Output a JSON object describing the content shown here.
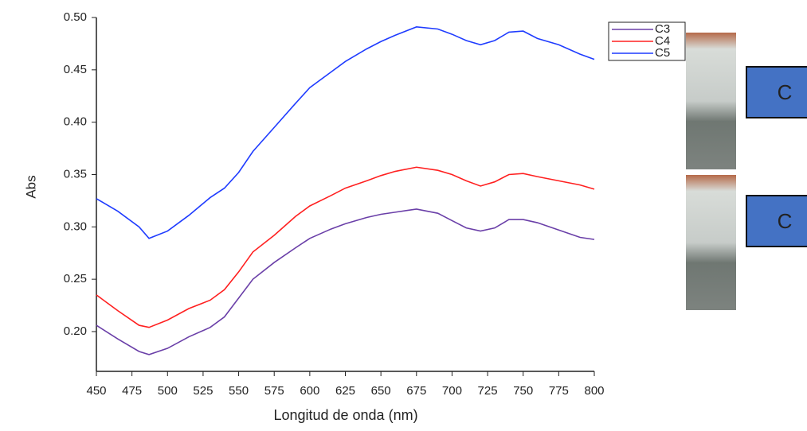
{
  "chart_data": {
    "type": "line",
    "x_label": "Longitud de onda (nm)",
    "y_label": "Abs",
    "x": [
      450,
      465,
      480,
      487,
      500,
      515,
      530,
      540,
      550,
      560,
      575,
      590,
      600,
      615,
      625,
      640,
      650,
      660,
      675,
      690,
      700,
      710,
      720,
      730,
      740,
      750,
      760,
      775,
      790,
      800
    ],
    "series": [
      {
        "name": "C3",
        "color": "#6a3fa8",
        "values": [
          0.206,
          0.193,
          0.181,
          0.178,
          0.184,
          0.195,
          0.204,
          0.214,
          0.232,
          0.25,
          0.266,
          0.28,
          0.289,
          0.298,
          0.303,
          0.309,
          0.312,
          0.314,
          0.317,
          0.313,
          0.306,
          0.299,
          0.296,
          0.299,
          0.307,
          0.307,
          0.304,
          0.297,
          0.29,
          0.288
        ]
      },
      {
        "name": "C4",
        "color": "#ff2020",
        "values": [
          0.235,
          0.22,
          0.206,
          0.204,
          0.211,
          0.222,
          0.23,
          0.24,
          0.257,
          0.276,
          0.292,
          0.31,
          0.32,
          0.33,
          0.337,
          0.344,
          0.349,
          0.353,
          0.357,
          0.354,
          0.35,
          0.344,
          0.339,
          0.343,
          0.35,
          0.351,
          0.348,
          0.344,
          0.34,
          0.336
        ]
      },
      {
        "name": "C5",
        "color": "#1f3cff",
        "values": [
          0.327,
          0.315,
          0.3,
          0.289,
          0.296,
          0.311,
          0.328,
          0.337,
          0.352,
          0.372,
          0.395,
          0.418,
          0.433,
          0.448,
          0.458,
          0.47,
          0.477,
          0.483,
          0.491,
          0.489,
          0.484,
          0.478,
          0.474,
          0.478,
          0.486,
          0.487,
          0.48,
          0.474,
          0.465,
          0.46
        ]
      }
    ],
    "xlim": [
      450,
      800
    ],
    "xticks": [
      450,
      475,
      500,
      525,
      550,
      575,
      600,
      625,
      650,
      675,
      700,
      725,
      750,
      775,
      800
    ],
    "ylim": [
      0.162,
      0.5
    ],
    "yticks": [
      {
        "value": 0.2,
        "label": "0.20"
      },
      0.25,
      {
        "value": 0.3,
        "label": "0.30"
      },
      0.35,
      {
        "value": 0.4,
        "label": "0.40"
      },
      0.45,
      {
        "value": 0.5,
        "label": "0.50"
      }
    ],
    "legend": "top-right",
    "annotations": [
      "C",
      "C"
    ]
  }
}
